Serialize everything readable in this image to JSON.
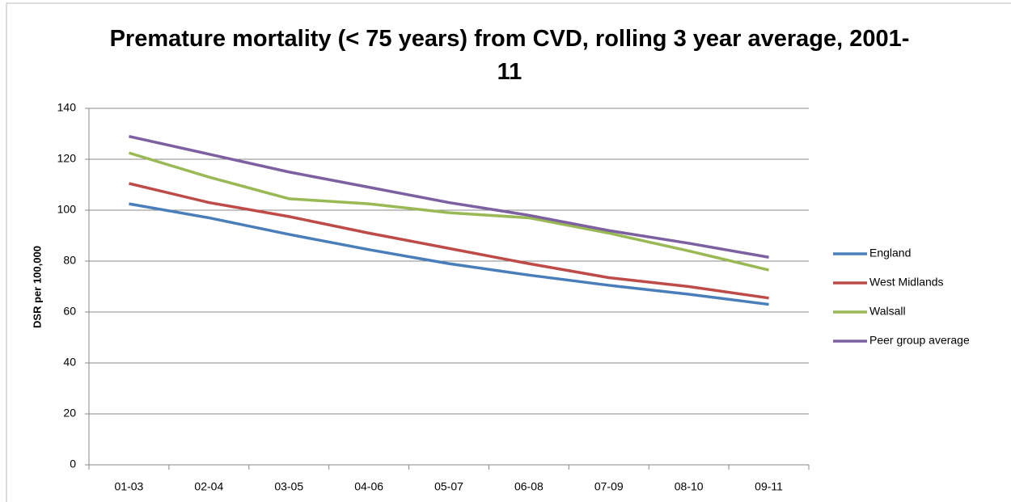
{
  "chart_data": {
    "type": "line",
    "title": "Premature mortality (< 75 years) from CVD, rolling 3 year average, 2001-11",
    "y_label": "DSR per 100,000",
    "categories": [
      "01-03",
      "02-04",
      "03-05",
      "04-06",
      "05-07",
      "06-08",
      "07-09",
      "08-10",
      "09-11"
    ],
    "series": [
      {
        "name": "England",
        "color": "#4a7ebb",
        "values": [
          102.5,
          97,
          90.5,
          84.5,
          79,
          74.5,
          70.5,
          67,
          63
        ]
      },
      {
        "name": "West Midlands",
        "color": "#be4b48",
        "values": [
          110.5,
          103,
          97.5,
          91,
          85,
          79,
          73.5,
          70,
          65.5
        ]
      },
      {
        "name": "Walsall",
        "color": "#98b954",
        "values": [
          122.5,
          113,
          104.5,
          102.5,
          99,
          97,
          91,
          84,
          76.5
        ]
      },
      {
        "name": "Peer group average",
        "color": "#7d60a0",
        "values": [
          129,
          122,
          115,
          109,
          103,
          98,
          92,
          87,
          81.5
        ]
      }
    ],
    "ylim": [
      0,
      140
    ],
    "yticks": [
      0,
      20,
      40,
      60,
      80,
      100,
      120,
      140
    ],
    "grid": true,
    "legend": "right"
  }
}
